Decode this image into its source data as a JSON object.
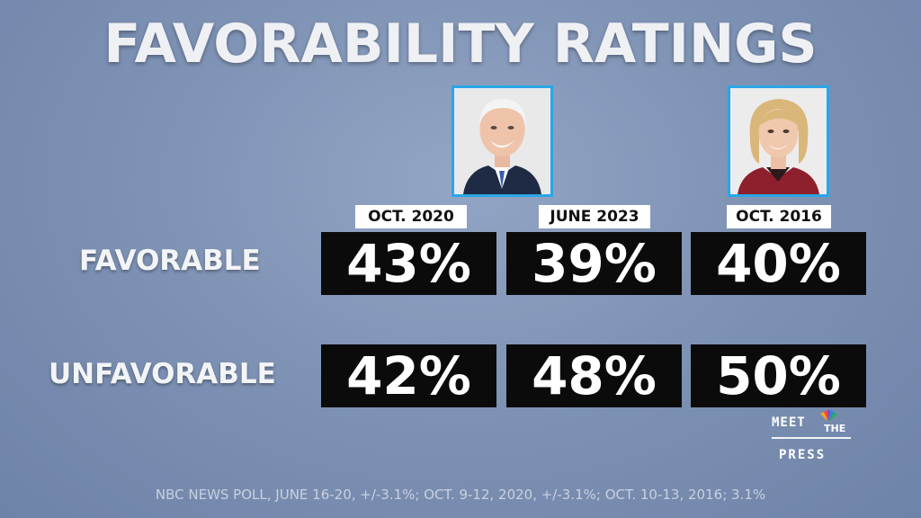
{
  "title": "FAVORABILITY RATINGS",
  "columns": [
    {
      "date": "OCT. 2020",
      "favorable": "43%",
      "unfavorable": "42%",
      "portrait": "man-portrait"
    },
    {
      "date": "JUNE 2023",
      "favorable": "39%",
      "unfavorable": "48%"
    },
    {
      "date": "OCT. 2016",
      "favorable": "40%",
      "unfavorable": "50%",
      "portrait": "woman-portrait"
    }
  ],
  "rows": {
    "favorable_label": "FAVORABLE",
    "unfavorable_label": "UNFAVORABLE"
  },
  "logo": {
    "top": "MEET",
    "the": "THE",
    "bottom": "PRESS"
  },
  "footer": "NBC NEWS POLL, JUNE 16-20, +/-3.1%;  OCT. 9-12, 2020, +/-3.1%; OCT. 10-13, 2016; 3.1%",
  "colors": {
    "background": "#7f93b5",
    "value_box": "#0b0b0b",
    "portrait_border": "#2aa6e6"
  }
}
